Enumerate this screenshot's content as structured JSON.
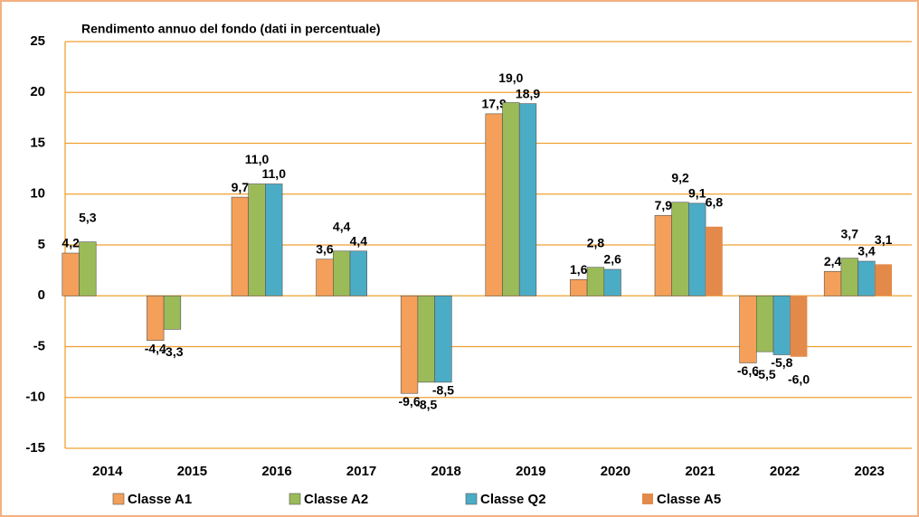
{
  "chart_data": {
    "type": "bar",
    "title": "Rendimento annuo del fondo (dati in percentuale)",
    "categories": [
      "2014",
      "2015",
      "2016",
      "2017",
      "2018",
      "2019",
      "2020",
      "2021",
      "2022",
      "2023"
    ],
    "series": [
      {
        "name": "Classe A1",
        "color": "#f4a05a",
        "values": [
          4.2,
          -4.4,
          9.7,
          3.6,
          -9.6,
          17.9,
          1.6,
          7.9,
          -6.6,
          2.4
        ],
        "value_labels": [
          "4,2",
          "-4,4",
          "9,7",
          "3,6",
          "-9,6",
          "17,9",
          "1,6",
          "7,9",
          "-6,6",
          "2,4"
        ]
      },
      {
        "name": "Classe A2",
        "color": "#9bbb59",
        "values": [
          5.3,
          -3.3,
          11.0,
          4.4,
          -8.5,
          19.0,
          2.8,
          9.2,
          -5.5,
          3.7
        ],
        "value_labels": [
          "5,3",
          "-3,3",
          "11,0",
          "4,4",
          "-8,5",
          "19,0",
          "2,8",
          "9,2",
          "-5,5",
          "3,7"
        ]
      },
      {
        "name": "Classe Q2",
        "color": "#4bacc6",
        "values": [
          null,
          null,
          11.0,
          4.4,
          -8.5,
          18.9,
          2.6,
          9.1,
          -5.8,
          3.4
        ],
        "value_labels": [
          null,
          null,
          "11,0",
          "4,4",
          "-8,5",
          "18,9",
          "2,6",
          "9,1",
          "-5,8",
          "3,4"
        ]
      },
      {
        "name": "Classe A5",
        "color": "#e38a4a",
        "values": [
          null,
          null,
          null,
          null,
          null,
          null,
          null,
          6.8,
          -6.0,
          3.1
        ],
        "value_labels": [
          null,
          null,
          null,
          null,
          null,
          null,
          null,
          "6,8",
          "-6,0",
          "3,1"
        ]
      }
    ],
    "ylim": [
      -15,
      25
    ],
    "yticks": [
      -15,
      -10,
      -5,
      0,
      5,
      10,
      15,
      20,
      25
    ],
    "grid": true,
    "legend": "bottom"
  }
}
